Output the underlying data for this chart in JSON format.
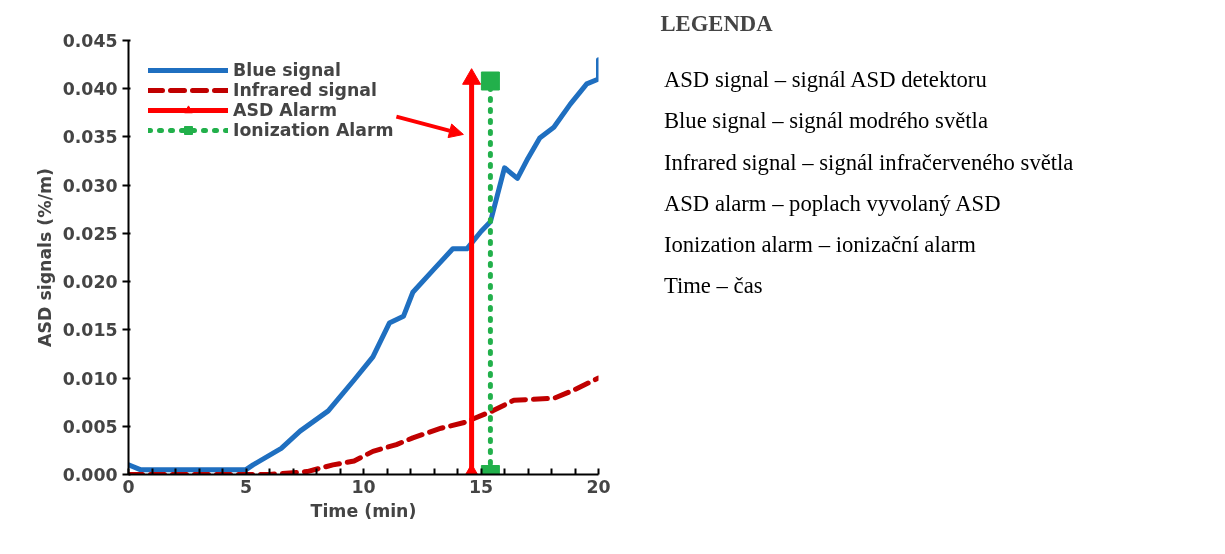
{
  "chart_data": [
    {
      "type": "line",
      "xlabel": "Time (min)",
      "ylabel": "ASD signals (%/m)",
      "xlim": [
        0,
        20
      ],
      "ylim": [
        0,
        0.045
      ],
      "xticks": [
        0,
        {
          "value": 1,
          "label": null
        },
        {
          "value": 2,
          "label": null
        },
        {
          "value": 3,
          "label": null
        },
        {
          "value": 4,
          "label": null
        },
        5,
        {
          "value": 6,
          "label": null
        },
        {
          "value": 7,
          "label": null
        },
        {
          "value": 8,
          "label": null
        },
        {
          "value": 9,
          "label": null
        },
        10,
        {
          "value": 11,
          "label": null
        },
        {
          "value": 12,
          "label": null
        },
        {
          "value": 13,
          "label": null
        },
        {
          "value": 14,
          "label": null
        },
        15,
        {
          "value": 16,
          "label": null
        },
        {
          "value": 17,
          "label": null
        },
        {
          "value": 18,
          "label": null
        },
        {
          "value": 19,
          "label": null
        },
        20
      ],
      "yticks": [
        {
          "value": 0,
          "label": "0.000"
        },
        {
          "value": 0.005,
          "label": "0.005"
        },
        {
          "value": 0.01,
          "label": "0.010"
        },
        {
          "value": 0.015,
          "label": "0.015"
        },
        {
          "value": 0.02,
          "label": "0.020"
        },
        {
          "value": 0.025,
          "label": "0.025"
        },
        {
          "value": 0.03,
          "label": "0.030"
        },
        {
          "value": 0.035,
          "label": "0.035"
        },
        {
          "value": 0.04,
          "label": "0.040"
        },
        {
          "value": 0.045,
          "label": "0.045"
        }
      ],
      "grid": false,
      "legend": "top left",
      "series": [
        {
          "name": "Blue signal",
          "color": "#1f6fc0",
          "line_style": "solid",
          "x": [
            0,
            0.5,
            1,
            2,
            3,
            4,
            5,
            5.3,
            6.5,
            7.3,
            8.5,
            9.6,
            10.4,
            11.1,
            11.7,
            12.1,
            13.0,
            13.8,
            14.4,
            15.0,
            15.4,
            15.7,
            16.0,
            16.55,
            17.0,
            17.5,
            18.1,
            18.8,
            19.5,
            20,
            20
          ],
          "values": [
            0.001,
            0.0005,
            0.0005,
            0.0005,
            0.0005,
            0.0005,
            0.0005,
            0.001,
            0.0027,
            0.0045,
            0.0066,
            0.0098,
            0.0122,
            0.0157,
            0.0164,
            0.0189,
            0.0213,
            0.0234,
            0.0234,
            0.0252,
            0.0262,
            0.029,
            0.0318,
            0.0307,
            0.0328,
            0.0349,
            0.036,
            0.0384,
            0.0405,
            0.041,
            0.043
          ]
        },
        {
          "name": "Infrared signal",
          "color": "#c00000",
          "line_style": "dashed",
          "x": [
            0,
            2,
            4,
            6,
            7.6,
            8.7,
            9.6,
            10.4,
            11.4,
            12.1,
            13.3,
            14.3,
            15.5,
            16.4,
            18.1,
            18.9,
            20
          ],
          "values": [
            0,
            0,
            0,
            0,
            0.0003,
            0.001,
            0.0014,
            0.0024,
            0.0031,
            0.0038,
            0.0048,
            0.0054,
            0.0066,
            0.0077,
            0.0079,
            0.0087,
            0.01
          ]
        },
        {
          "name": "ASD Alarm",
          "color": "#ff0000",
          "line_style": "solid",
          "marker": "triangle",
          "x": [
            14.6,
            14.6
          ],
          "values": [
            0,
            0.041
          ]
        },
        {
          "name": "Ionization Alarm",
          "color": "#22b04b",
          "line_style": "dotted",
          "marker": "square",
          "x": [
            15.4,
            15.4
          ],
          "values": [
            0,
            0.0408
          ]
        }
      ]
    },
    {
      "type": "other",
      "title": "LEGENDA",
      "annotations": [
        "ASD signal – signál ASD detektoru",
        "Blue signal – signál modrého světla",
        "Infrared signal – signál infračerveného světla",
        "ASD alarm – poplach vyvolaný ASD",
        "Ionization alarm – ionizační alarm",
        "Time – čas"
      ]
    }
  ]
}
